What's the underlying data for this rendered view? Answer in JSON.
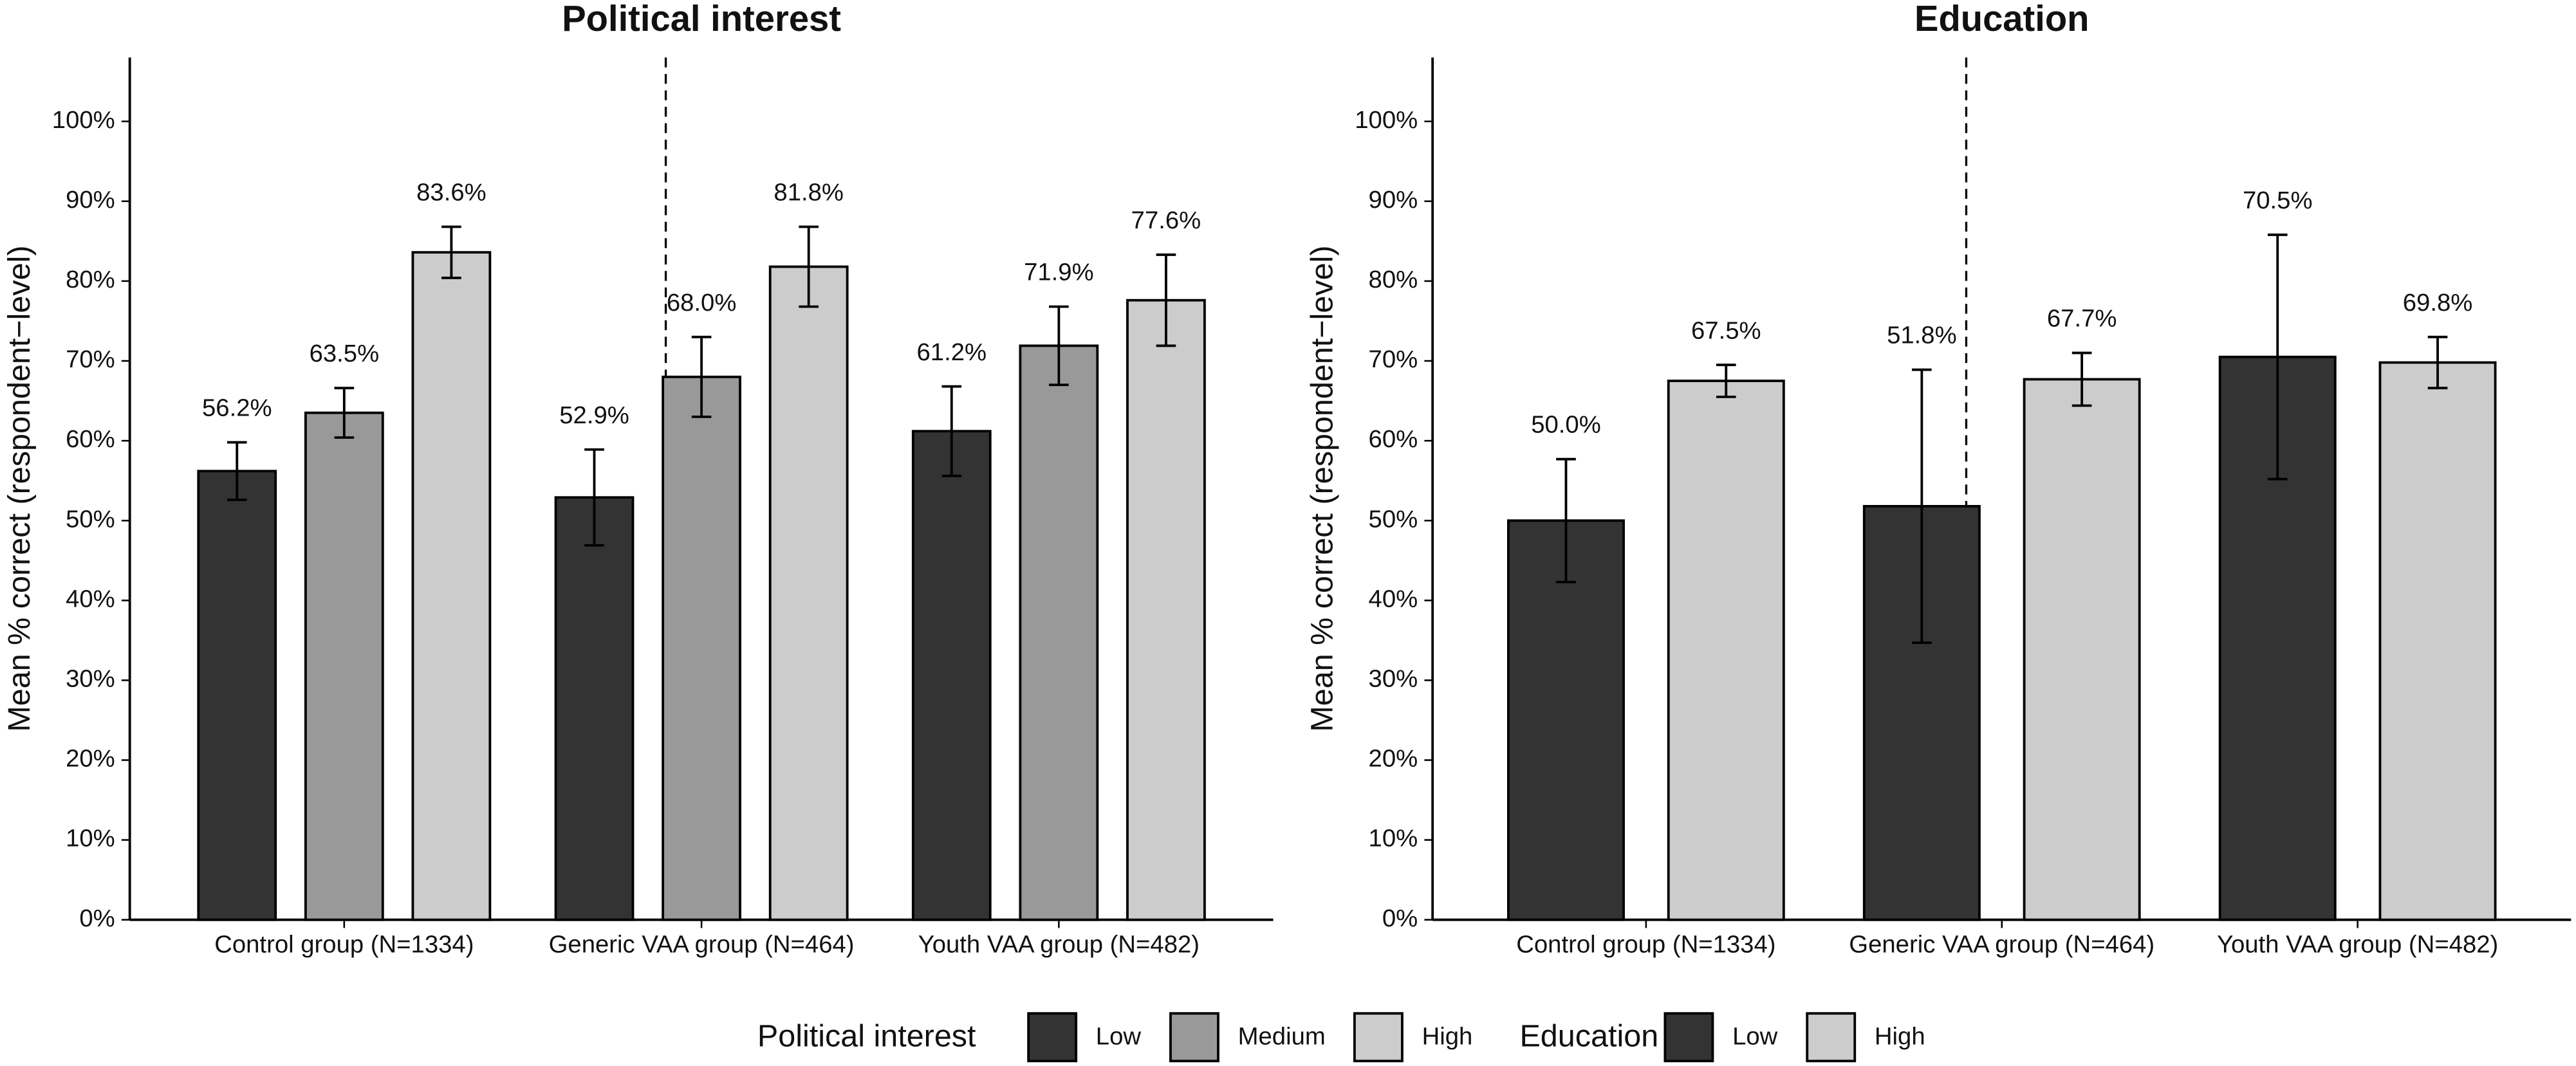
{
  "chart_data": [
    {
      "type": "bar",
      "title": "Political interest",
      "ylabel": "Mean % correct (respondent−level)",
      "categories": [
        "Control group (N=1334)",
        "Generic VAA group (N=464)",
        "Youth VAA group (N=482)"
      ],
      "legend_title": "Political interest",
      "series": [
        {
          "name": "Low",
          "color": "#333333",
          "values": [
            56.2,
            52.9,
            61.2
          ],
          "errors": [
            3.6,
            6.0,
            5.6
          ],
          "value_labels": [
            "56.2%",
            "52.9%",
            "61.2%"
          ]
        },
        {
          "name": "Medium",
          "color": "#999999",
          "values": [
            63.5,
            68.0,
            71.9
          ],
          "errors": [
            3.1,
            5.0,
            4.9
          ],
          "value_labels": [
            "63.5%",
            "68.0%",
            "71.9%"
          ]
        },
        {
          "name": "High",
          "color": "#cccccc",
          "values": [
            83.6,
            81.8,
            77.6
          ],
          "errors": [
            3.2,
            5.0,
            5.7
          ],
          "value_labels": [
            "83.6%",
            "81.8%",
            "77.6%"
          ]
        }
      ],
      "ylim": [
        0,
        108
      ],
      "yticks": [
        {
          "value": 0,
          "label": "0%"
        },
        {
          "value": 10,
          "label": "10%"
        },
        {
          "value": 20,
          "label": "20%"
        },
        {
          "value": 30,
          "label": "30%"
        },
        {
          "value": 40,
          "label": "40%"
        },
        {
          "value": 50,
          "label": "50%"
        },
        {
          "value": 60,
          "label": "60%"
        },
        {
          "value": 70,
          "label": "70%"
        },
        {
          "value": 80,
          "label": "80%"
        },
        {
          "value": 90,
          "label": "90%"
        },
        {
          "value": 100,
          "label": "100%"
        }
      ]
    },
    {
      "type": "bar",
      "title": "Education",
      "ylabel": "Mean % correct (respondent−level)",
      "categories": [
        "Control group (N=1334)",
        "Generic VAA group (N=464)",
        "Youth VAA group (N=482)"
      ],
      "legend_title": "Education",
      "series": [
        {
          "name": "Low",
          "color": "#333333",
          "values": [
            50.0,
            51.8,
            70.5
          ],
          "errors": [
            7.7,
            17.1,
            15.3
          ],
          "value_labels": [
            "50.0%",
            "51.8%",
            "70.5%"
          ]
        },
        {
          "name": "High",
          "color": "#cccccc",
          "values": [
            67.5,
            67.7,
            69.8
          ],
          "errors": [
            2.0,
            3.3,
            3.2
          ],
          "value_labels": [
            "67.5%",
            "67.7%",
            "69.8%"
          ]
        }
      ],
      "ylim": [
        0,
        108
      ],
      "yticks": [
        {
          "value": 0,
          "label": "0%"
        },
        {
          "value": 10,
          "label": "10%"
        },
        {
          "value": 20,
          "label": "20%"
        },
        {
          "value": 30,
          "label": "30%"
        },
        {
          "value": 40,
          "label": "40%"
        },
        {
          "value": 50,
          "label": "50%"
        },
        {
          "value": 60,
          "label": "60%"
        },
        {
          "value": 70,
          "label": "70%"
        },
        {
          "value": 80,
          "label": "80%"
        },
        {
          "value": 90,
          "label": "90%"
        },
        {
          "value": 100,
          "label": "100%"
        }
      ]
    }
  ]
}
